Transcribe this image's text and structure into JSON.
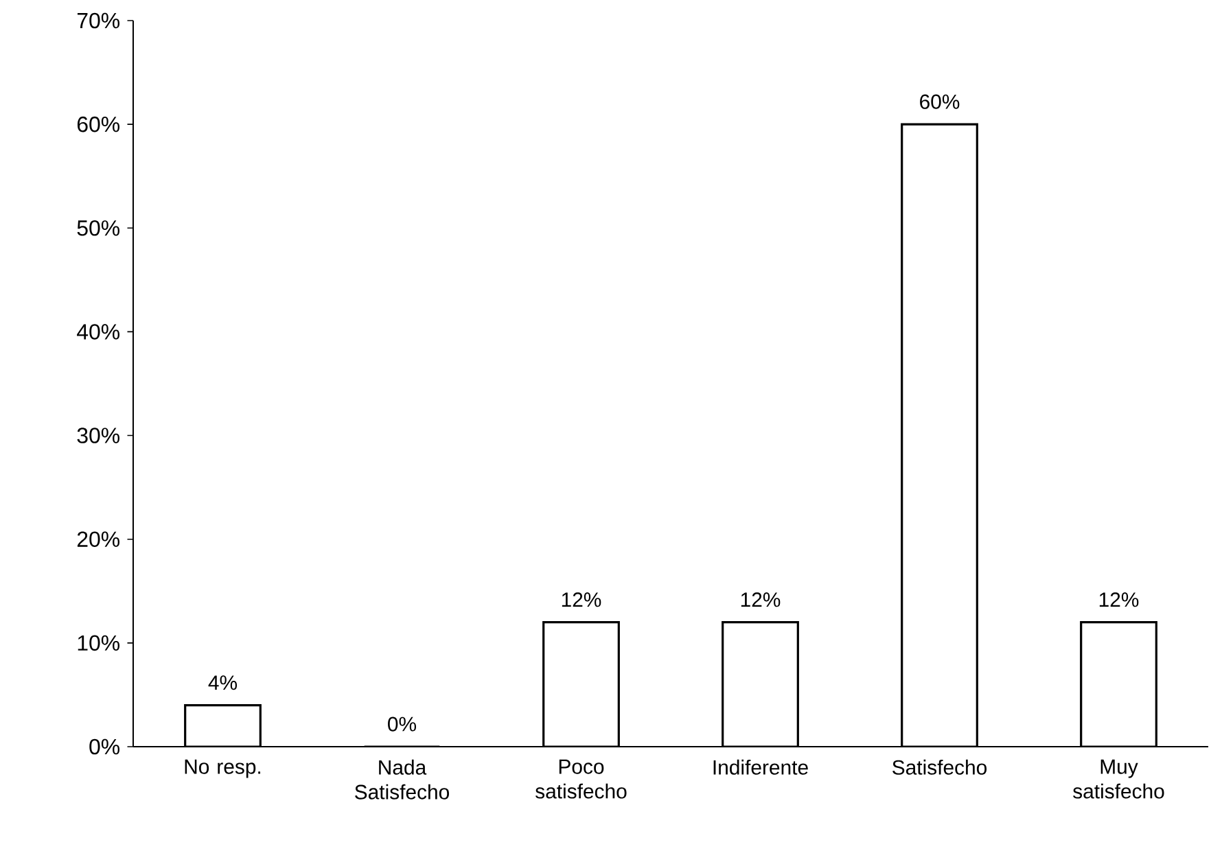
{
  "chart_data": {
    "type": "bar",
    "categories": [
      "No resp.",
      "Nada Satisfecho",
      "Poco satisfecho",
      "Indiferente",
      "Satisfecho",
      "Muy satisfecho"
    ],
    "values": [
      4,
      0,
      12,
      12,
      60,
      12
    ],
    "value_labels": [
      "4%",
      "0%",
      "12%",
      "12%",
      "60%",
      "12%"
    ],
    "color": "#ffffff",
    "ylim": [
      0,
      70
    ],
    "yticks": [
      {
        "value": 0,
        "label": "0%"
      },
      {
        "value": 10,
        "label": "10%"
      },
      {
        "value": 20,
        "label": "20%"
      },
      {
        "value": 30,
        "label": "30%"
      },
      {
        "value": 40,
        "label": "40%"
      },
      {
        "value": 50,
        "label": "50%"
      },
      {
        "value": 60,
        "label": "60%"
      },
      {
        "value": 70,
        "label": "70%"
      }
    ],
    "grid": false
  }
}
